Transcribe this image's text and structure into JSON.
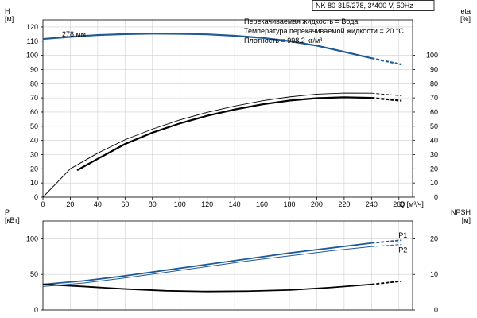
{
  "header": {
    "model": "NK 80-315/278, 3*400 V, 50Hz",
    "info": [
      "Перекачиваемая жидкость = Вода",
      "Температура перекачиваемой жидкости = 20 °C",
      "Плотность = 998.2 кг/м³"
    ]
  },
  "colors": {
    "head": "#1e5a96",
    "power": "#1e5a96",
    "eta": "#000000",
    "npsh": "#000000",
    "grid": "#cfcfcf"
  },
  "chart_data": [
    {
      "type": "line",
      "name": "upper",
      "xlabel": "Q [м³/ч]",
      "ylabel_left": "H\n[м]",
      "ylabel_right": "eta\n[%]",
      "xlim": [
        0,
        270
      ],
      "ylim_left": [
        0,
        125
      ],
      "ylim_right": [
        0,
        125
      ],
      "xticks": [
        0,
        20,
        40,
        60,
        80,
        100,
        120,
        140,
        160,
        180,
        200,
        220,
        240,
        260
      ],
      "yticks_left": [
        0,
        10,
        20,
        30,
        40,
        50,
        60,
        70,
        80,
        90,
        100,
        110,
        120
      ],
      "yticks_right": [
        0,
        10,
        20,
        30,
        40,
        50,
        60,
        70,
        80,
        90,
        100
      ],
      "annotation": "278 мм",
      "series": [
        {
          "key": "head",
          "axis": "left",
          "color": "#1e5a96",
          "width": 2.2,
          "x": [
            0,
            20,
            40,
            60,
            80,
            100,
            120,
            140,
            160,
            180,
            200,
            220,
            240,
            262
          ],
          "y": [
            111.5,
            113,
            114.3,
            115,
            115.3,
            115.2,
            114.8,
            113.8,
            112.3,
            110,
            106.8,
            102.5,
            98,
            93.5
          ]
        },
        {
          "key": "eta_thin",
          "axis": "right",
          "color": "#000000",
          "width": 0.9,
          "x": [
            0,
            20,
            40,
            60,
            80,
            100,
            120,
            140,
            160,
            180,
            200,
            220,
            240,
            262
          ],
          "y": [
            0,
            20,
            31,
            40.5,
            48,
            54.5,
            59.8,
            64.2,
            67.9,
            70.7,
            72.6,
            73.4,
            73.3,
            71.5
          ]
        },
        {
          "key": "eta",
          "axis": "right",
          "color": "#000000",
          "width": 2.2,
          "x": [
            25,
            40,
            60,
            80,
            100,
            120,
            140,
            160,
            180,
            200,
            220,
            240,
            262
          ],
          "y": [
            19,
            27,
            37.5,
            45.5,
            52,
            57.4,
            61.8,
            65.4,
            68.1,
            69.8,
            70.4,
            70,
            68
          ]
        }
      ]
    },
    {
      "type": "line",
      "name": "lower",
      "ylabel_left": "P\n[кВт]",
      "ylabel_right": "NPSH\n[м]",
      "xlim": [
        0,
        270
      ],
      "ylim_left": [
        0,
        125
      ],
      "ylim_right": [
        0,
        25
      ],
      "yticks_left": [
        0,
        50,
        100
      ],
      "yticks_right": [
        0,
        10,
        20
      ],
      "series": [
        {
          "key": "p1",
          "axis": "left",
          "color": "#1e5a96",
          "width": 1.8,
          "label": "P1",
          "x": [
            0,
            30,
            60,
            90,
            120,
            150,
            180,
            210,
            240,
            262
          ],
          "y": [
            36,
            41,
            48,
            56,
            64,
            72,
            80,
            87,
            94,
            98
          ]
        },
        {
          "key": "p2",
          "axis": "left",
          "color": "#1e5a96",
          "width": 1.0,
          "label": "P2",
          "x": [
            0,
            30,
            60,
            90,
            120,
            150,
            180,
            210,
            240,
            262
          ],
          "y": [
            33,
            38,
            45,
            53,
            61,
            69,
            76,
            83,
            89,
            92
          ]
        },
        {
          "key": "npsh",
          "axis": "right",
          "color": "#000000",
          "width": 1.8,
          "x": [
            0,
            30,
            60,
            90,
            120,
            150,
            180,
            210,
            240,
            262
          ],
          "y": [
            7.2,
            6.6,
            5.9,
            5.4,
            5.2,
            5.3,
            5.6,
            6.3,
            7.2,
            8.1
          ]
        }
      ]
    }
  ]
}
